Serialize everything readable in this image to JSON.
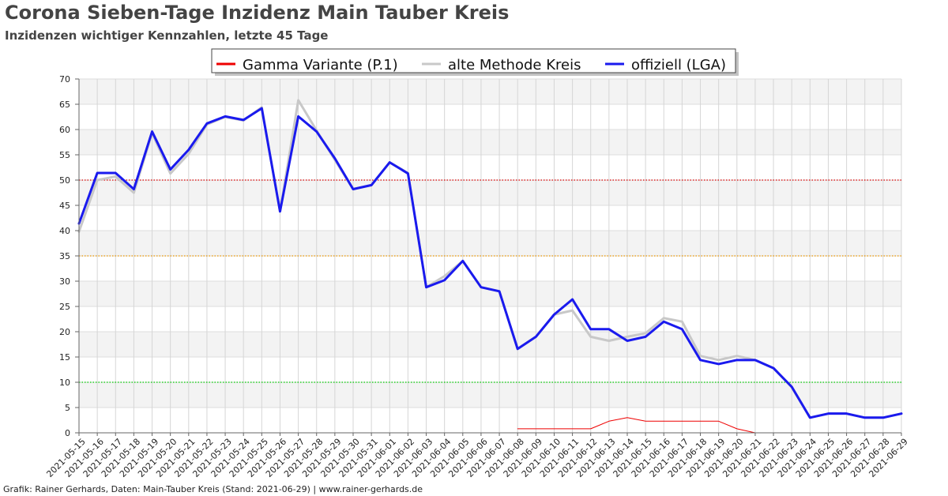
{
  "header": {
    "title": "Corona Sieben-Tage Inzidenz Main Tauber Kreis",
    "subtitle": "Inzidenzen wichtiger Kennzahlen, letzte 45 Tage"
  },
  "footer": {
    "text": "Grafik: Rainer Gerhards, Daten: Main-Tauber Kreis (Stand: 2021-06-29) | www.rainer-gerhards.de"
  },
  "chart_data": {
    "type": "line",
    "title": "Corona Sieben-Tage Inzidenz Main Tauber Kreis",
    "subtitle": "Inzidenzen wichtiger Kennzahlen, letzte 45 Tage",
    "xlabel": "",
    "ylabel": "",
    "ylim": [
      0,
      70
    ],
    "yticks": [
      0,
      5,
      10,
      15,
      20,
      25,
      30,
      35,
      40,
      45,
      50,
      55,
      60,
      65,
      70
    ],
    "grid": true,
    "legend_position": "top-center",
    "categories": [
      "2021-05-15",
      "2021-05-16",
      "2021-05-17",
      "2021-05-18",
      "2021-05-19",
      "2021-05-20",
      "2021-05-21",
      "2021-05-22",
      "2021-05-23",
      "2021-05-24",
      "2021-05-25",
      "2021-05-26",
      "2021-05-27",
      "2021-05-28",
      "2021-05-29",
      "2021-05-30",
      "2021-05-31",
      "2021-06-01",
      "2021-06-02",
      "2021-06-03",
      "2021-06-04",
      "2021-06-05",
      "2021-06-06",
      "2021-06-07",
      "2021-06-08",
      "2021-06-09",
      "2021-06-10",
      "2021-06-11",
      "2021-06-12",
      "2021-06-13",
      "2021-06-14",
      "2021-06-15",
      "2021-06-16",
      "2021-06-17",
      "2021-06-18",
      "2021-06-19",
      "2021-06-20",
      "2021-06-21",
      "2021-06-22",
      "2021-06-23",
      "2021-06-24",
      "2021-06-25",
      "2021-06-26",
      "2021-06-27",
      "2021-06-28",
      "2021-06-29"
    ],
    "reference_lines": [
      {
        "value": 50,
        "color": "#dd0000"
      },
      {
        "value": 35,
        "color": "#ee9900"
      },
      {
        "value": 10,
        "color": "#00cc00"
      }
    ],
    "series": [
      {
        "name": "Gamma Variante (P.1)",
        "color": "#ee0000",
        "width": 1,
        "values": [
          null,
          null,
          null,
          null,
          null,
          null,
          null,
          null,
          null,
          null,
          null,
          null,
          null,
          null,
          null,
          null,
          null,
          null,
          null,
          null,
          null,
          null,
          null,
          null,
          0.8,
          0.8,
          0.8,
          0.8,
          0.8,
          2.3,
          3.0,
          2.3,
          2.3,
          2.3,
          2.3,
          2.3,
          0.8,
          0,
          null,
          null,
          null,
          null,
          null,
          null,
          null,
          null
        ]
      },
      {
        "name": "alte Methode Kreis",
        "color": "#c8c8c8",
        "width": 3,
        "values": [
          39.8,
          50.0,
          50.7,
          47.5,
          59.3,
          51.3,
          55.2,
          61.0,
          62.5,
          61.8,
          64.4,
          43.8,
          65.8,
          59.8,
          54.0,
          48.2,
          49.0,
          53.5,
          51.4,
          28.8,
          31.0,
          34.0,
          28.8,
          28.0,
          16.6,
          19.0,
          23.4,
          24.2,
          19.0,
          18.2,
          19.0,
          19.7,
          22.7,
          22.0,
          15.2,
          14.4,
          15.2,
          14.4,
          12.8,
          9.0,
          3.0,
          3.8,
          3.8,
          3.0,
          3.0,
          3.8
        ]
      },
      {
        "name": "offiziell (LGA)",
        "color": "#1a1aee",
        "width": 3,
        "values": [
          41.4,
          51.4,
          51.4,
          48.2,
          59.6,
          52.1,
          56.0,
          61.2,
          62.6,
          61.9,
          64.2,
          43.8,
          62.6,
          59.6,
          54.3,
          48.2,
          49.0,
          53.5,
          51.3,
          28.8,
          30.2,
          34.0,
          28.8,
          28.0,
          16.6,
          19.0,
          23.4,
          26.4,
          20.5,
          20.5,
          18.2,
          19.0,
          22.0,
          20.5,
          14.4,
          13.6,
          14.4,
          14.4,
          12.8,
          9.1,
          3.0,
          3.8,
          3.8,
          3.0,
          3.0,
          3.8
        ]
      }
    ]
  }
}
